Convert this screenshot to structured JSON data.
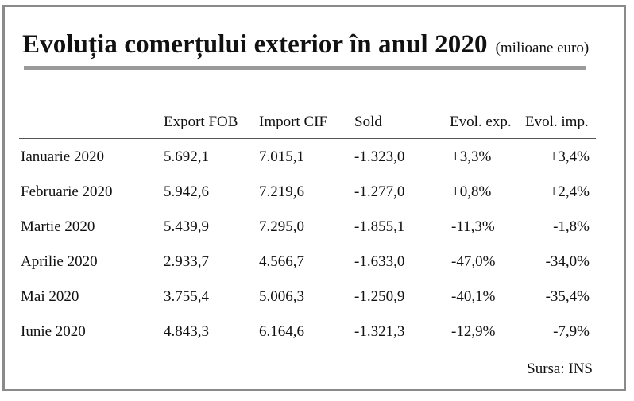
{
  "title": "Evoluția comerțului exterior în anul 2020",
  "unit": "(milioane euro)",
  "headers": [
    "",
    "Export FOB",
    "Import CIF",
    "Sold",
    "Evol. exp.",
    "Evol. imp."
  ],
  "rows": [
    {
      "month": "Ianuarie 2020",
      "export": "5.692,1",
      "import": "7.015,1",
      "sold": "-1.323,0",
      "evol_exp": "+3,3%",
      "evol_imp": "+3,4%"
    },
    {
      "month": "Februarie 2020",
      "export": "5.942,6",
      "import": "7.219,6",
      "sold": "-1.277,0",
      "evol_exp": "+0,8%",
      "evol_imp": "+2,4%"
    },
    {
      "month": "Martie 2020",
      "export": "5.439,9",
      "import": "7.295,0",
      "sold": "-1.855,1",
      "evol_exp": "-11,3%",
      "evol_imp": "-1,8%"
    },
    {
      "month": "Aprilie 2020",
      "export": "2.933,7",
      "import": "4.566,7",
      "sold": "-1.633,0",
      "evol_exp": "-47,0%",
      "evol_imp": "-34,0%"
    },
    {
      "month": "Mai 2020",
      "export": "3.755,4",
      "import": "5.006,3",
      "sold": "-1.250,9",
      "evol_exp": "-40,1%",
      "evol_imp": "-35,4%"
    },
    {
      "month": "Iunie 2020",
      "export": "4.843,3",
      "import": "6.164,6",
      "sold": "-1.321,3",
      "evol_exp": "-12,9%",
      "evol_imp": "-7,9%"
    }
  ],
  "source": "Sursa: INS"
}
